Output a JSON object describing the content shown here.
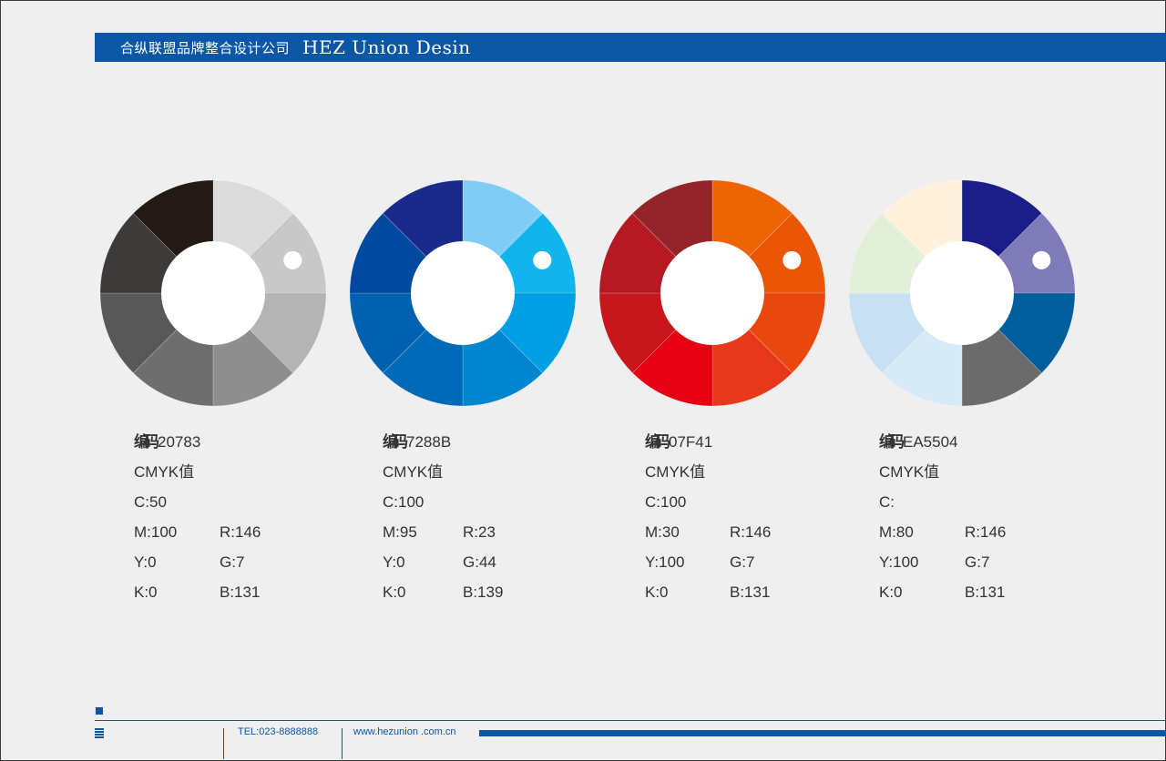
{
  "header": {
    "company_cn": "合纵联盟品牌整合设计公司",
    "company_en": "HEZ Union Desin"
  },
  "wheels": [
    {
      "colors": [
        "#dcdcdc",
        "#c8c8c8",
        "#b4b4b4",
        "#8e8e8e",
        "#6e6e6e",
        "#585858",
        "#3e3a3a",
        "#231a16"
      ],
      "dot_segment": 1,
      "code_label": "编码",
      "code": "20783",
      "cmyk_label": "CMYK值",
      "c": "C:50",
      "m": "M:100",
      "y": "Y:0",
      "k": "K:0",
      "r": "R:146",
      "g": "G:7",
      "b": "B:131"
    },
    {
      "colors": [
        "#7fcdf4",
        "#11b5ec",
        "#009fe3",
        "#0085cf",
        "#006ab9",
        "#0061b0",
        "#0049a0",
        "#1a2a8a"
      ],
      "dot_segment": 1,
      "code_label": "编码",
      "code": "7288B",
      "cmyk_label": "CMYK值",
      "c": "C:100",
      "m": "M:95",
      "y": "Y:0",
      "k": "K:0",
      "r": "R:23",
      "g": "G:44",
      "b": "B:139"
    },
    {
      "colors": [
        "#ed6404",
        "#ea5506",
        "#e8480e",
        "#e6381a",
        "#e60012",
        "#c8161d",
        "#b51a22",
        "#93242a"
      ],
      "dot_segment": 1,
      "code_label": "编码",
      "code": "07F41",
      "cmyk_label": "CMYK值",
      "c": "C:100",
      "m": "M:30",
      "y": "Y:100",
      "k": "K:0",
      "r": "R:146",
      "g": "G:7",
      "b": "B:131"
    },
    {
      "colors": [
        "#1b1d88",
        "#7f7ab8",
        "#005e9c",
        "#6b6b6b",
        "#d6eaf8",
        "#c8e0f4",
        "#e3f0d9",
        "#fff1db"
      ],
      "dot_segment": 1,
      "code_label": "编码",
      "code": "EA5504",
      "cmyk_label": "CMYK值",
      "c": "C:",
      "m": "M:80",
      "y": "Y:100",
      "k": "K:0",
      "r": "R:146",
      "g": "G:7",
      "b": "B:131"
    }
  ],
  "footer": {
    "tel": "TEL:023-8888888",
    "web": "www.hezunion .com.cn"
  }
}
